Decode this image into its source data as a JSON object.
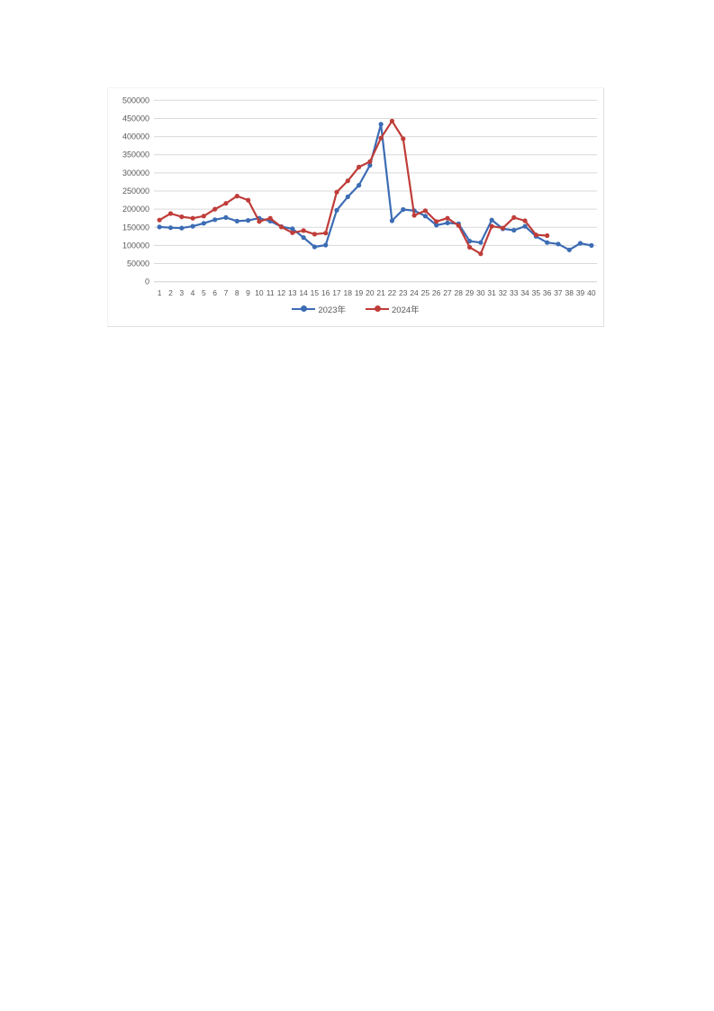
{
  "chart": {
    "grid_color": "#d9d9d9",
    "axis_line_color": "#d0d0d0",
    "axis_label_color": "#595959",
    "border_color": "#e0e0e0",
    "background": "#ffffff"
  },
  "legend": {
    "items": [
      {
        "label": "2023年"
      },
      {
        "label": "2024年"
      }
    ]
  },
  "chart_data": {
    "type": "line",
    "title": "",
    "xlabel": "",
    "ylabel": "",
    "categories": [
      1,
      2,
      3,
      4,
      5,
      6,
      7,
      8,
      9,
      10,
      11,
      12,
      13,
      14,
      15,
      16,
      17,
      18,
      19,
      20,
      21,
      22,
      23,
      24,
      25,
      26,
      27,
      28,
      29,
      30,
      31,
      32,
      33,
      34,
      35,
      36,
      37,
      38,
      39,
      40
    ],
    "series": [
      {
        "name": "2023年",
        "color": "#3c6cb4",
        "marker": "circle",
        "values": [
          151000,
          149000,
          148000,
          153000,
          161000,
          171000,
          177000,
          167000,
          169000,
          175000,
          167000,
          152000,
          146000,
          122000,
          96000,
          101000,
          197000,
          234000,
          266000,
          321000,
          434000,
          168000,
          199000,
          196000,
          181000,
          156000,
          162000,
          160000,
          112000,
          108000,
          170000,
          146000,
          142000,
          153000,
          125000,
          108000,
          104000,
          88000,
          106000,
          100000
        ]
      },
      {
        "name": "2024年",
        "color": "#bf3d39",
        "marker": "circle",
        "values": [
          170000,
          188000,
          179000,
          175000,
          181000,
          200000,
          216000,
          236000,
          225000,
          166000,
          175000,
          151000,
          135000,
          141000,
          131000,
          134000,
          247000,
          278000,
          316000,
          331000,
          396000,
          443000,
          394000,
          183000,
          196000,
          166000,
          175000,
          155000,
          95000,
          77000,
          153000,
          148000,
          177000,
          168000,
          129000,
          127000
        ]
      }
    ],
    "ylim": [
      0,
      500000
    ],
    "yticks": [
      0,
      50000,
      100000,
      150000,
      200000,
      250000,
      300000,
      350000,
      400000,
      450000,
      500000
    ],
    "grid": "horizontal",
    "legend_position": "bottom"
  }
}
